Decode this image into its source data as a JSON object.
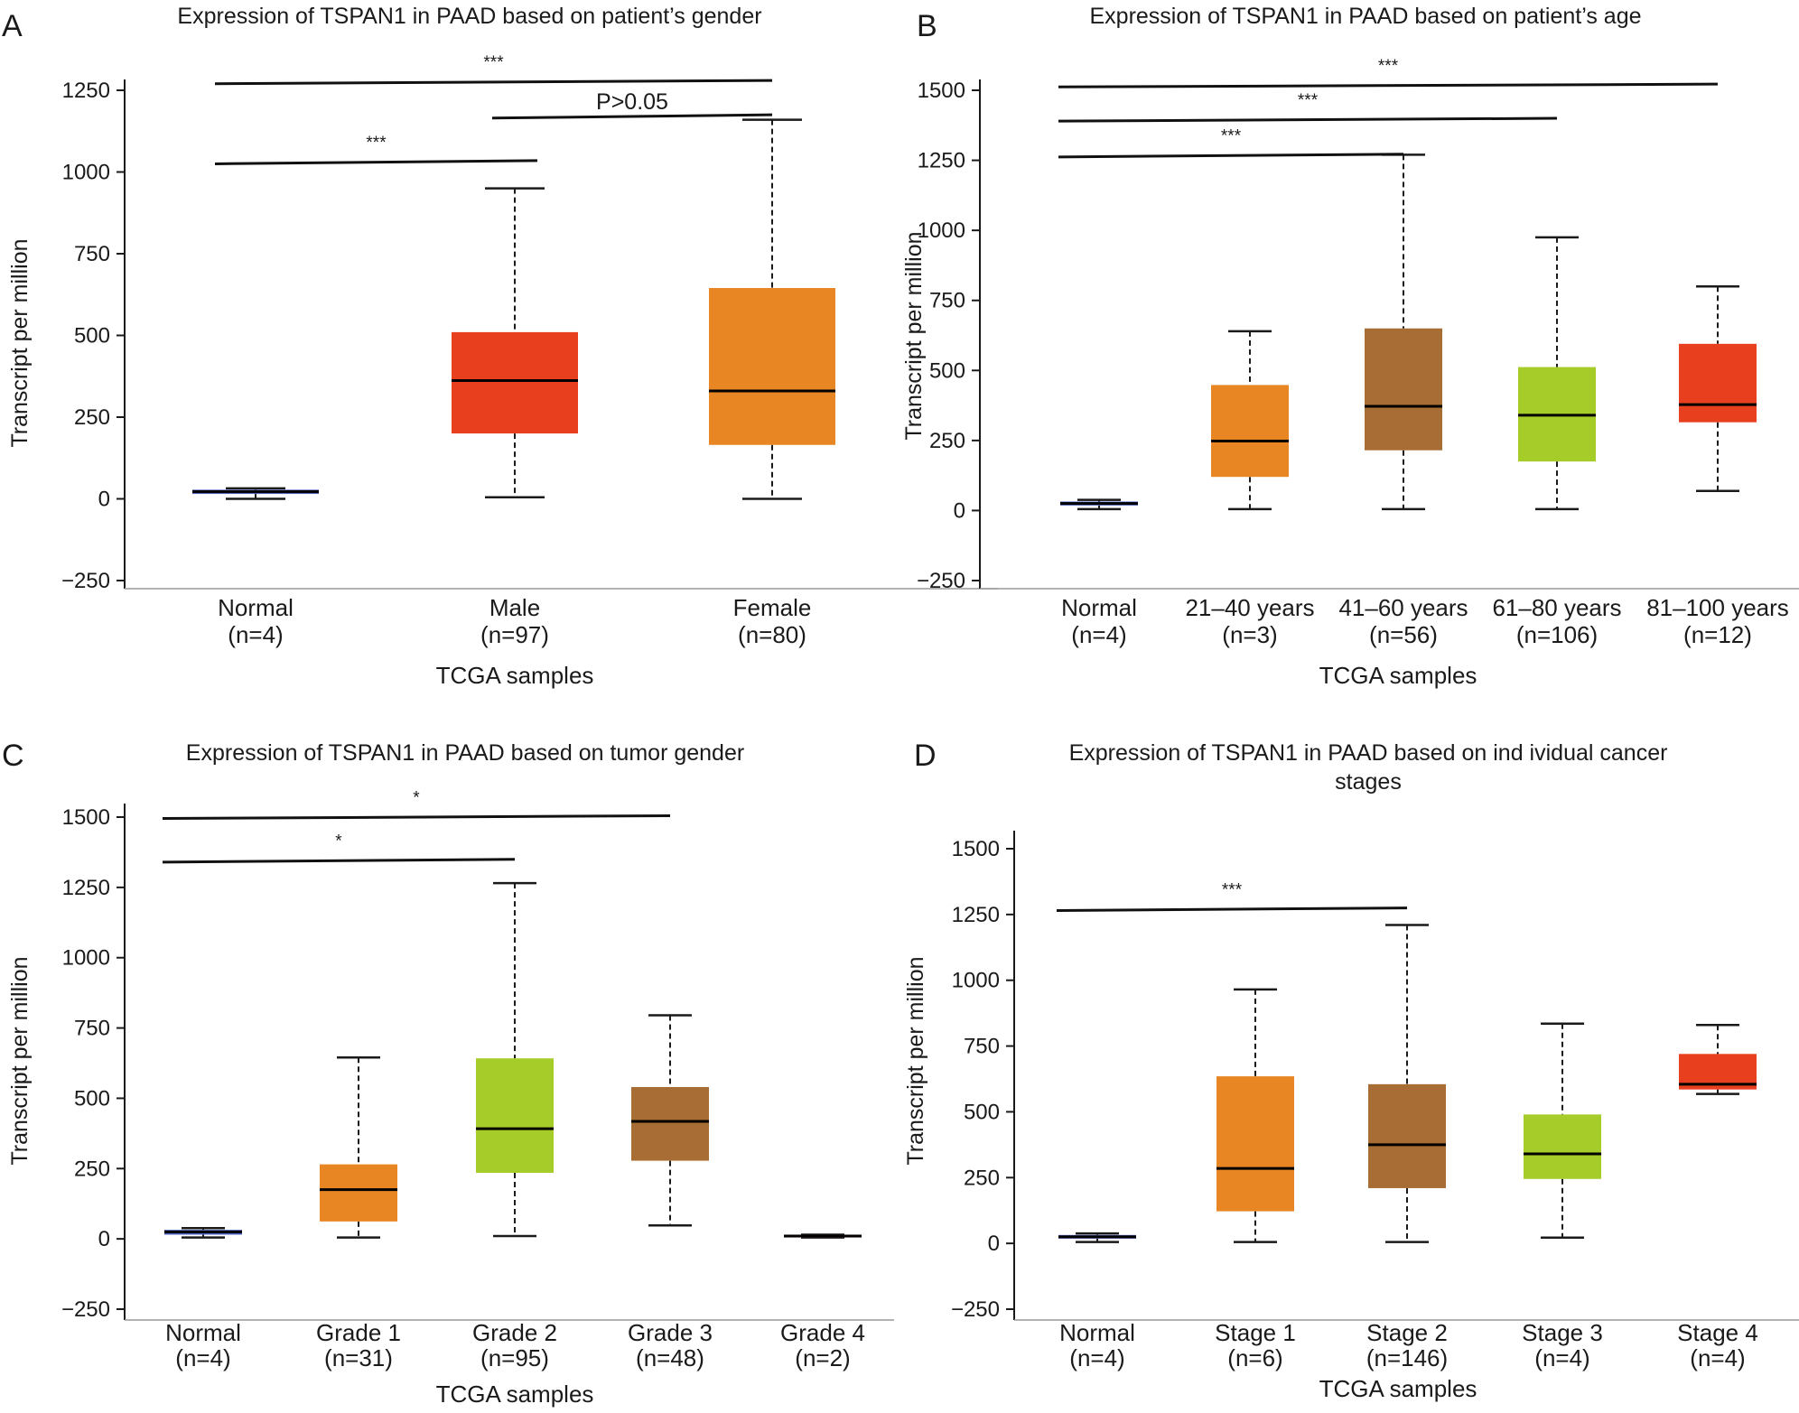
{
  "chart_data": [
    {
      "panel": "A",
      "type": "box",
      "title": "Expression of TSPAN1 in PAAD based on patient’s gender",
      "xlabel": "TCGA samples",
      "ylabel": "Transcript per million",
      "yticks": [
        "−250",
        "0",
        "250",
        "500",
        "750",
        "1000",
        "1250"
      ],
      "ylim": [
        -250,
        1250
      ],
      "categories": [
        {
          "name": "Normal",
          "n": "(n=4)",
          "color": "#4a5fc1",
          "min": 0,
          "q1": 15,
          "median": 22,
          "q3": 28,
          "max": 32
        },
        {
          "name": "Male",
          "n": "(n=97)",
          "color": "#e8401f",
          "min": 5,
          "q1": 200,
          "median": 362,
          "q3": 510,
          "max": 950
        },
        {
          "name": "Female",
          "n": "(n=80)",
          "color": "#e88623",
          "min": 0,
          "q1": 165,
          "median": 330,
          "q3": 645,
          "max": 1160
        }
      ],
      "comparisons": [
        {
          "label": "***",
          "from": "Normal",
          "to": "Female",
          "y1": 1270,
          "y2": 1280
        },
        {
          "label": "P>0.05",
          "from": "Male",
          "to": "Female",
          "y1": 1165,
          "y2": 1175
        },
        {
          "label": "***",
          "from": "Normal",
          "to": "Male",
          "y1": 1025,
          "y2": 1035
        }
      ]
    },
    {
      "panel": "B",
      "type": "box",
      "title": "Expression of TSPAN1 in PAAD based on patient’s age",
      "xlabel": "TCGA samples",
      "ylabel": "Transcript per million",
      "yticks": [
        "−250",
        "0",
        "250",
        "500",
        "750",
        "1000",
        "1250",
        "1500"
      ],
      "ylim": [
        -250,
        1500
      ],
      "categories": [
        {
          "name": "Normal",
          "n": "(n=4)",
          "color": "#4a5fc1",
          "min": 5,
          "q1": 18,
          "median": 25,
          "q3": 32,
          "max": 38
        },
        {
          "name": "21–40 years",
          "n": "(n=3)",
          "color": "#e88623",
          "min": 5,
          "q1": 120,
          "median": 248,
          "q3": 448,
          "max": 640
        },
        {
          "name": "41–60 years",
          "n": "(n=56)",
          "color": "#a86c35",
          "min": 5,
          "q1": 215,
          "median": 372,
          "q3": 650,
          "max": 1270
        },
        {
          "name": "61–80 years",
          "n": "(n=106)",
          "color": "#a5cc28",
          "min": 5,
          "q1": 175,
          "median": 340,
          "q3": 512,
          "max": 975
        },
        {
          "name": "81–100 years",
          "n": "(n=12)",
          "color": "#e8401f",
          "min": 70,
          "q1": 315,
          "median": 378,
          "q3": 595,
          "max": 800
        }
      ],
      "comparisons": [
        {
          "label": "***",
          "from": "Normal",
          "to": "81–100 years",
          "y1": 1512,
          "y2": 1522
        },
        {
          "label": "***",
          "from": "Normal",
          "to": "61–80 years",
          "y1": 1390,
          "y2": 1400
        },
        {
          "label": "***",
          "from": "Normal",
          "to": "41–60 years",
          "y1": 1262,
          "y2": 1272
        }
      ]
    },
    {
      "panel": "C",
      "type": "box",
      "title": "Expression of TSPAN1 in PAAD based on tumor gender",
      "xlabel": "TCGA samples",
      "ylabel": "Transcript per million",
      "yticks": [
        "−250",
        "0",
        "250",
        "500",
        "750",
        "1000",
        "1250",
        "1500"
      ],
      "ylim": [
        -250,
        1500
      ],
      "categories": [
        {
          "name": "Normal",
          "n": "(n=4)",
          "color": "#4a5fc1",
          "min": 5,
          "q1": 15,
          "median": 25,
          "q3": 32,
          "max": 38
        },
        {
          "name": "Grade 1",
          "n": "(n=31)",
          "color": "#e88623",
          "min": 5,
          "q1": 62,
          "median": 175,
          "q3": 265,
          "max": 645
        },
        {
          "name": "Grade 2",
          "n": "(n=95)",
          "color": "#a5cc28",
          "min": 10,
          "q1": 235,
          "median": 392,
          "q3": 642,
          "max": 1265
        },
        {
          "name": "Grade 3",
          "n": "(n=48)",
          "color": "#a86c35",
          "min": 48,
          "q1": 278,
          "median": 418,
          "q3": 540,
          "max": 795
        },
        {
          "name": "Grade 4",
          "n": "(n=2)",
          "color": "#d43f8d",
          "min": 5,
          "q1": 5,
          "median": 10,
          "q3": 15,
          "max": 15
        }
      ],
      "comparisons": [
        {
          "label": "*",
          "from": "Normal",
          "to": "Grade 3",
          "y1": 1495,
          "y2": 1505
        },
        {
          "label": "*",
          "from": "Normal",
          "to": "Grade 2",
          "y1": 1340,
          "y2": 1350
        }
      ]
    },
    {
      "panel": "D",
      "type": "box",
      "title": "Expression of TSPAN1 in PAAD based on ind ividual cancer stages",
      "xlabel": "TCGA samples",
      "ylabel": "Transcript per million",
      "yticks": [
        "−250",
        "0",
        "250",
        "500",
        "750",
        "1000",
        "1250",
        "1500"
      ],
      "ylim": [
        -250,
        1500
      ],
      "categories": [
        {
          "name": "Normal",
          "n": "(n=4)",
          "color": "#4a5fc1",
          "min": 5,
          "q1": 18,
          "median": 25,
          "q3": 32,
          "max": 38
        },
        {
          "name": "Stage 1",
          "n": "(n=6)",
          "color": "#e88623",
          "min": 5,
          "q1": 122,
          "median": 285,
          "q3": 635,
          "max": 965
        },
        {
          "name": "Stage 2",
          "n": "(n=146)",
          "color": "#a86c35",
          "min": 5,
          "q1": 210,
          "median": 375,
          "q3": 605,
          "max": 1210
        },
        {
          "name": "Stage 3",
          "n": "(n=4)",
          "color": "#a5cc28",
          "min": 22,
          "q1": 245,
          "median": 340,
          "q3": 490,
          "max": 835
        },
        {
          "name": "Stage 4",
          "n": "(n=4)",
          "color": "#e8401f",
          "min": 568,
          "q1": 585,
          "median": 605,
          "q3": 720,
          "max": 830
        }
      ],
      "comparisons": [
        {
          "label": "***",
          "from": "Normal",
          "to": "Stage 2",
          "y1": 1265,
          "y2": 1275
        }
      ]
    }
  ]
}
